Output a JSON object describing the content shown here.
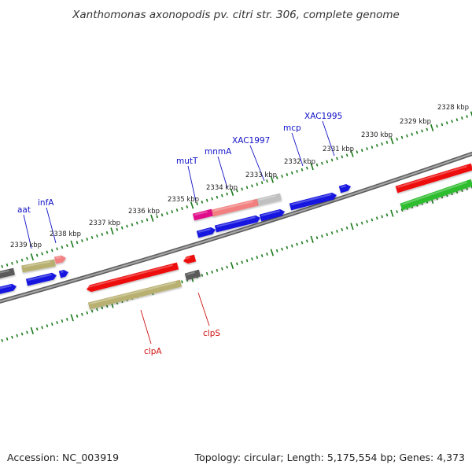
{
  "title": "Xanthomonas axonopodis pv. citri str. 306, complete genome",
  "footer": {
    "accession": "Accession: NC_003919",
    "summary": "Topology: circular; Length: 5,175,554 bp; Genes: 4,373"
  },
  "scale_labels": [
    "2328 kbp",
    "2329 kbp",
    "2330 kbp",
    "2331 kbp",
    "2332 kbp",
    "2333 kbp",
    "2334 kbp",
    "2335 kbp",
    "2336 kbp",
    "2337 kbp",
    "2338 kbp",
    "2339 kbp"
  ],
  "gene_labels_top": [
    "aat",
    "infA",
    "mutT",
    "mnmA",
    "XAC1997",
    "mcp",
    "XAC1995"
  ],
  "gene_labels_bottom": [
    "clpA",
    "clpS"
  ],
  "colors": {
    "backbone": "#808080",
    "tick": "#1a7a1a",
    "forward_gene": "#1414e0",
    "cds_red": "#ee1111",
    "cds_pink": "#f28080",
    "cds_magenta": "#e0108a",
    "cds_grey": "#c0c0c0",
    "cds_darkgrey": "#5a5a5a",
    "cds_olive": "#b8b070",
    "cds_green": "#2ebd2e",
    "label_top": "#1010c8",
    "label_bottom": "#d01010"
  }
}
